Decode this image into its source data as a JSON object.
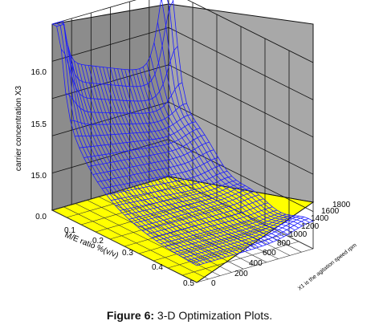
{
  "chart_data": {
    "type": "surface3d",
    "zlabel": "carrier concentration X3",
    "xlabel": "M/E ratio %(v/v)",
    "ylabel": "X1 is the agitation speed rpm",
    "z_ticks": [
      "0.0",
      "15.0",
      "15.5",
      "16.0"
    ],
    "x_ticks": [
      "0.1",
      "0.2",
      "0.3",
      "0.4",
      "0.5"
    ],
    "y_ticks": [
      "0",
      "200",
      "400",
      "600",
      "800",
      "1000",
      "1200",
      "1400",
      "1600",
      "1800"
    ],
    "x_range": [
      0.05,
      0.5
    ],
    "y_range": [
      0,
      1800
    ],
    "colors": {
      "mesh": "#1a1aff",
      "floor": "#ffff00",
      "walls": "#8c8c8c",
      "grid": "#111111"
    },
    "surface_description_points": [
      {
        "x": 0.05,
        "y": 0,
        "z_frac": 0.93
      },
      {
        "x": 0.05,
        "y": 1800,
        "z_frac": 0.68
      },
      {
        "x": 0.5,
        "y": 0,
        "z_frac": 0.05
      },
      {
        "x": 0.5,
        "y": 1800,
        "z_frac": 0.14
      },
      {
        "x": 0.3,
        "y": 900,
        "z_frac": 0.12
      }
    ]
  },
  "caption": {
    "label": "Figure 6:",
    "text": " 3-D Optimization Plots."
  }
}
